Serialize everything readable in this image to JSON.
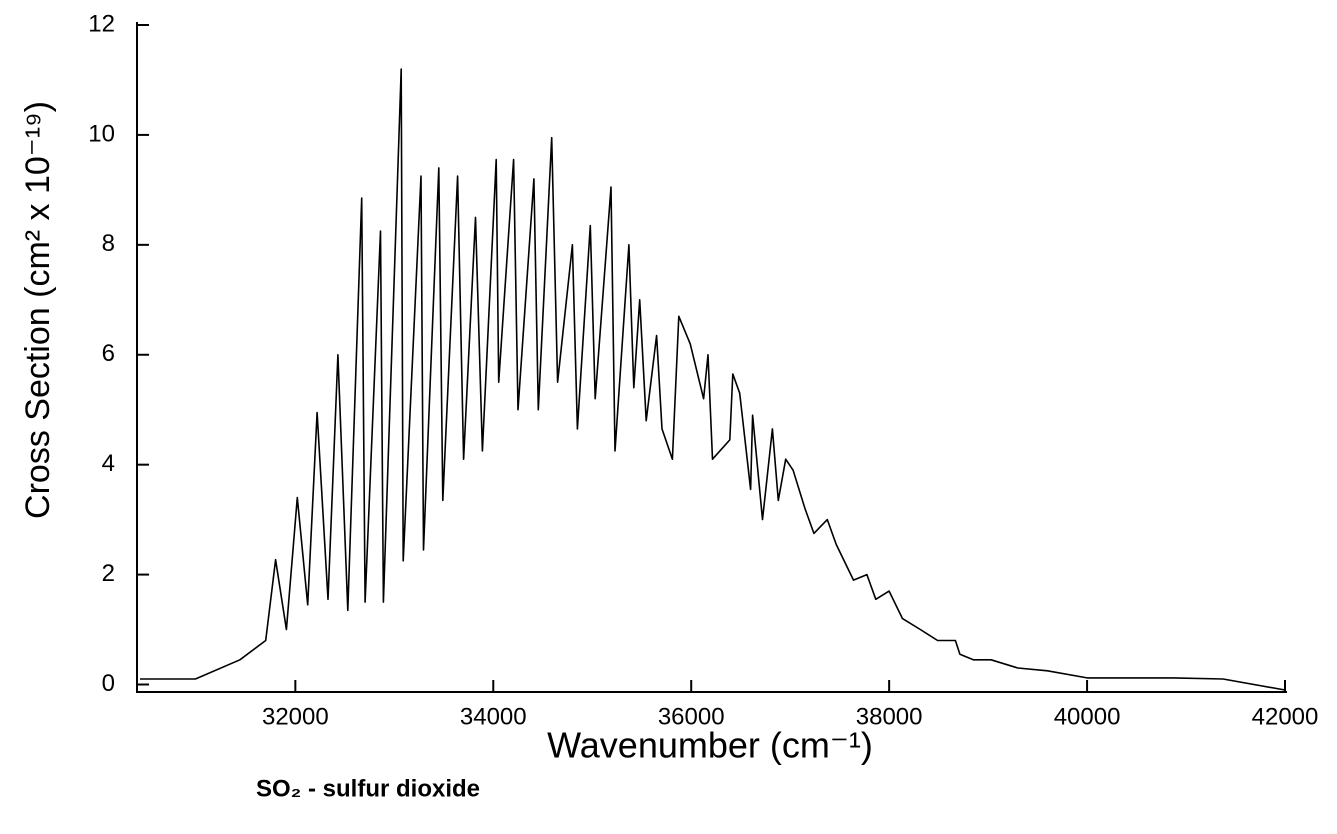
{
  "chart_data": {
    "type": "line",
    "xlabel": "Wavenumber (cm⁻¹)",
    "ylabel": "Cross Section (cm² x 10⁻¹⁹)",
    "subtitle": "SO₂  - sulfur dioxide",
    "color": "#000000",
    "x": [
      30430,
      30990,
      31440,
      31700,
      31800,
      31910,
      32020,
      32125,
      32220,
      32330,
      32430,
      32530,
      32670,
      32705,
      32860,
      32890,
      33070,
      33090,
      33270,
      33295,
      33450,
      33490,
      33640,
      33700,
      33820,
      33890,
      34030,
      34055,
      34205,
      34250,
      34410,
      34455,
      34590,
      34650,
      34800,
      34850,
      34980,
      35030,
      35190,
      35230,
      35370,
      35420,
      35480,
      35545,
      35650,
      35705,
      35810,
      35875,
      35990,
      36125,
      36170,
      36215,
      36390,
      36420,
      36490,
      36600,
      36620,
      36720,
      36820,
      36880,
      36955,
      37030,
      37150,
      37240,
      37375,
      37465,
      37640,
      37775,
      37865,
      38000,
      38135,
      38315,
      38490,
      38670,
      38715,
      38850,
      39030,
      39300,
      39600,
      40000,
      40875,
      41375,
      42000
    ],
    "values": [
      0.1,
      0.1,
      0.45,
      0.8,
      2.27,
      1.0,
      3.4,
      1.45,
      4.95,
      1.55,
      6.0,
      1.35,
      8.85,
      1.5,
      8.25,
      1.5,
      11.2,
      2.25,
      9.25,
      2.45,
      9.4,
      3.35,
      9.25,
      4.1,
      8.5,
      4.25,
      9.55,
      5.5,
      9.55,
      5.0,
      9.2,
      5.0,
      9.95,
      5.5,
      8.0,
      4.65,
      8.35,
      5.2,
      9.05,
      4.25,
      8.0,
      5.4,
      7.0,
      4.8,
      6.35,
      4.65,
      4.1,
      6.7,
      6.2,
      5.2,
      6.0,
      4.1,
      4.45,
      5.65,
      5.3,
      3.55,
      4.9,
      3.0,
      4.65,
      3.35,
      4.1,
      3.9,
      3.2,
      2.75,
      3.0,
      2.55,
      1.9,
      2.0,
      1.55,
      1.7,
      1.2,
      1.0,
      0.8,
      0.8,
      0.55,
      0.45,
      0.45,
      0.3,
      0.25,
      0.12,
      0.12,
      0.1,
      -0.1
    ],
    "xlim": [
      30400,
      42000
    ],
    "xticks": [
      32000,
      34000,
      36000,
      38000,
      40000,
      42000
    ],
    "ylim": [
      -0.1,
      12
    ],
    "yticks": [
      0,
      2,
      4,
      6,
      8,
      10,
      12
    ]
  }
}
